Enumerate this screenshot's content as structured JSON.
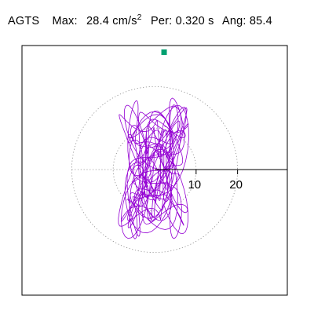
{
  "header": {
    "station": "AGTS",
    "max_label": "Max:",
    "max_value": "28.4",
    "max_unit": "cm/s",
    "max_exp": "2",
    "per_label": "Per:",
    "per_value": "0.320 s",
    "ang_label": "Ang:",
    "ang_value": "85.4"
  },
  "chart_data": {
    "type": "polar-orbit",
    "radial_ticks": [
      "10",
      "20"
    ],
    "radial_tick_values": [
      10,
      20
    ],
    "radial_max": 28.4,
    "grid": "dotted-circles",
    "orientation_line_angle_deg": 0,
    "peak_marker": {
      "direction_deg": 85.4,
      "magnitude": 28.4
    },
    "orbit": {
      "x_amplitude": 6.5,
      "y_amplitude": 13.5,
      "sample_count": 1400
    },
    "colors": {
      "orbit": "#9400d3",
      "marker": "#00a070",
      "grid": "#888888",
      "axis": "#000000",
      "frame": "#000000"
    }
  }
}
